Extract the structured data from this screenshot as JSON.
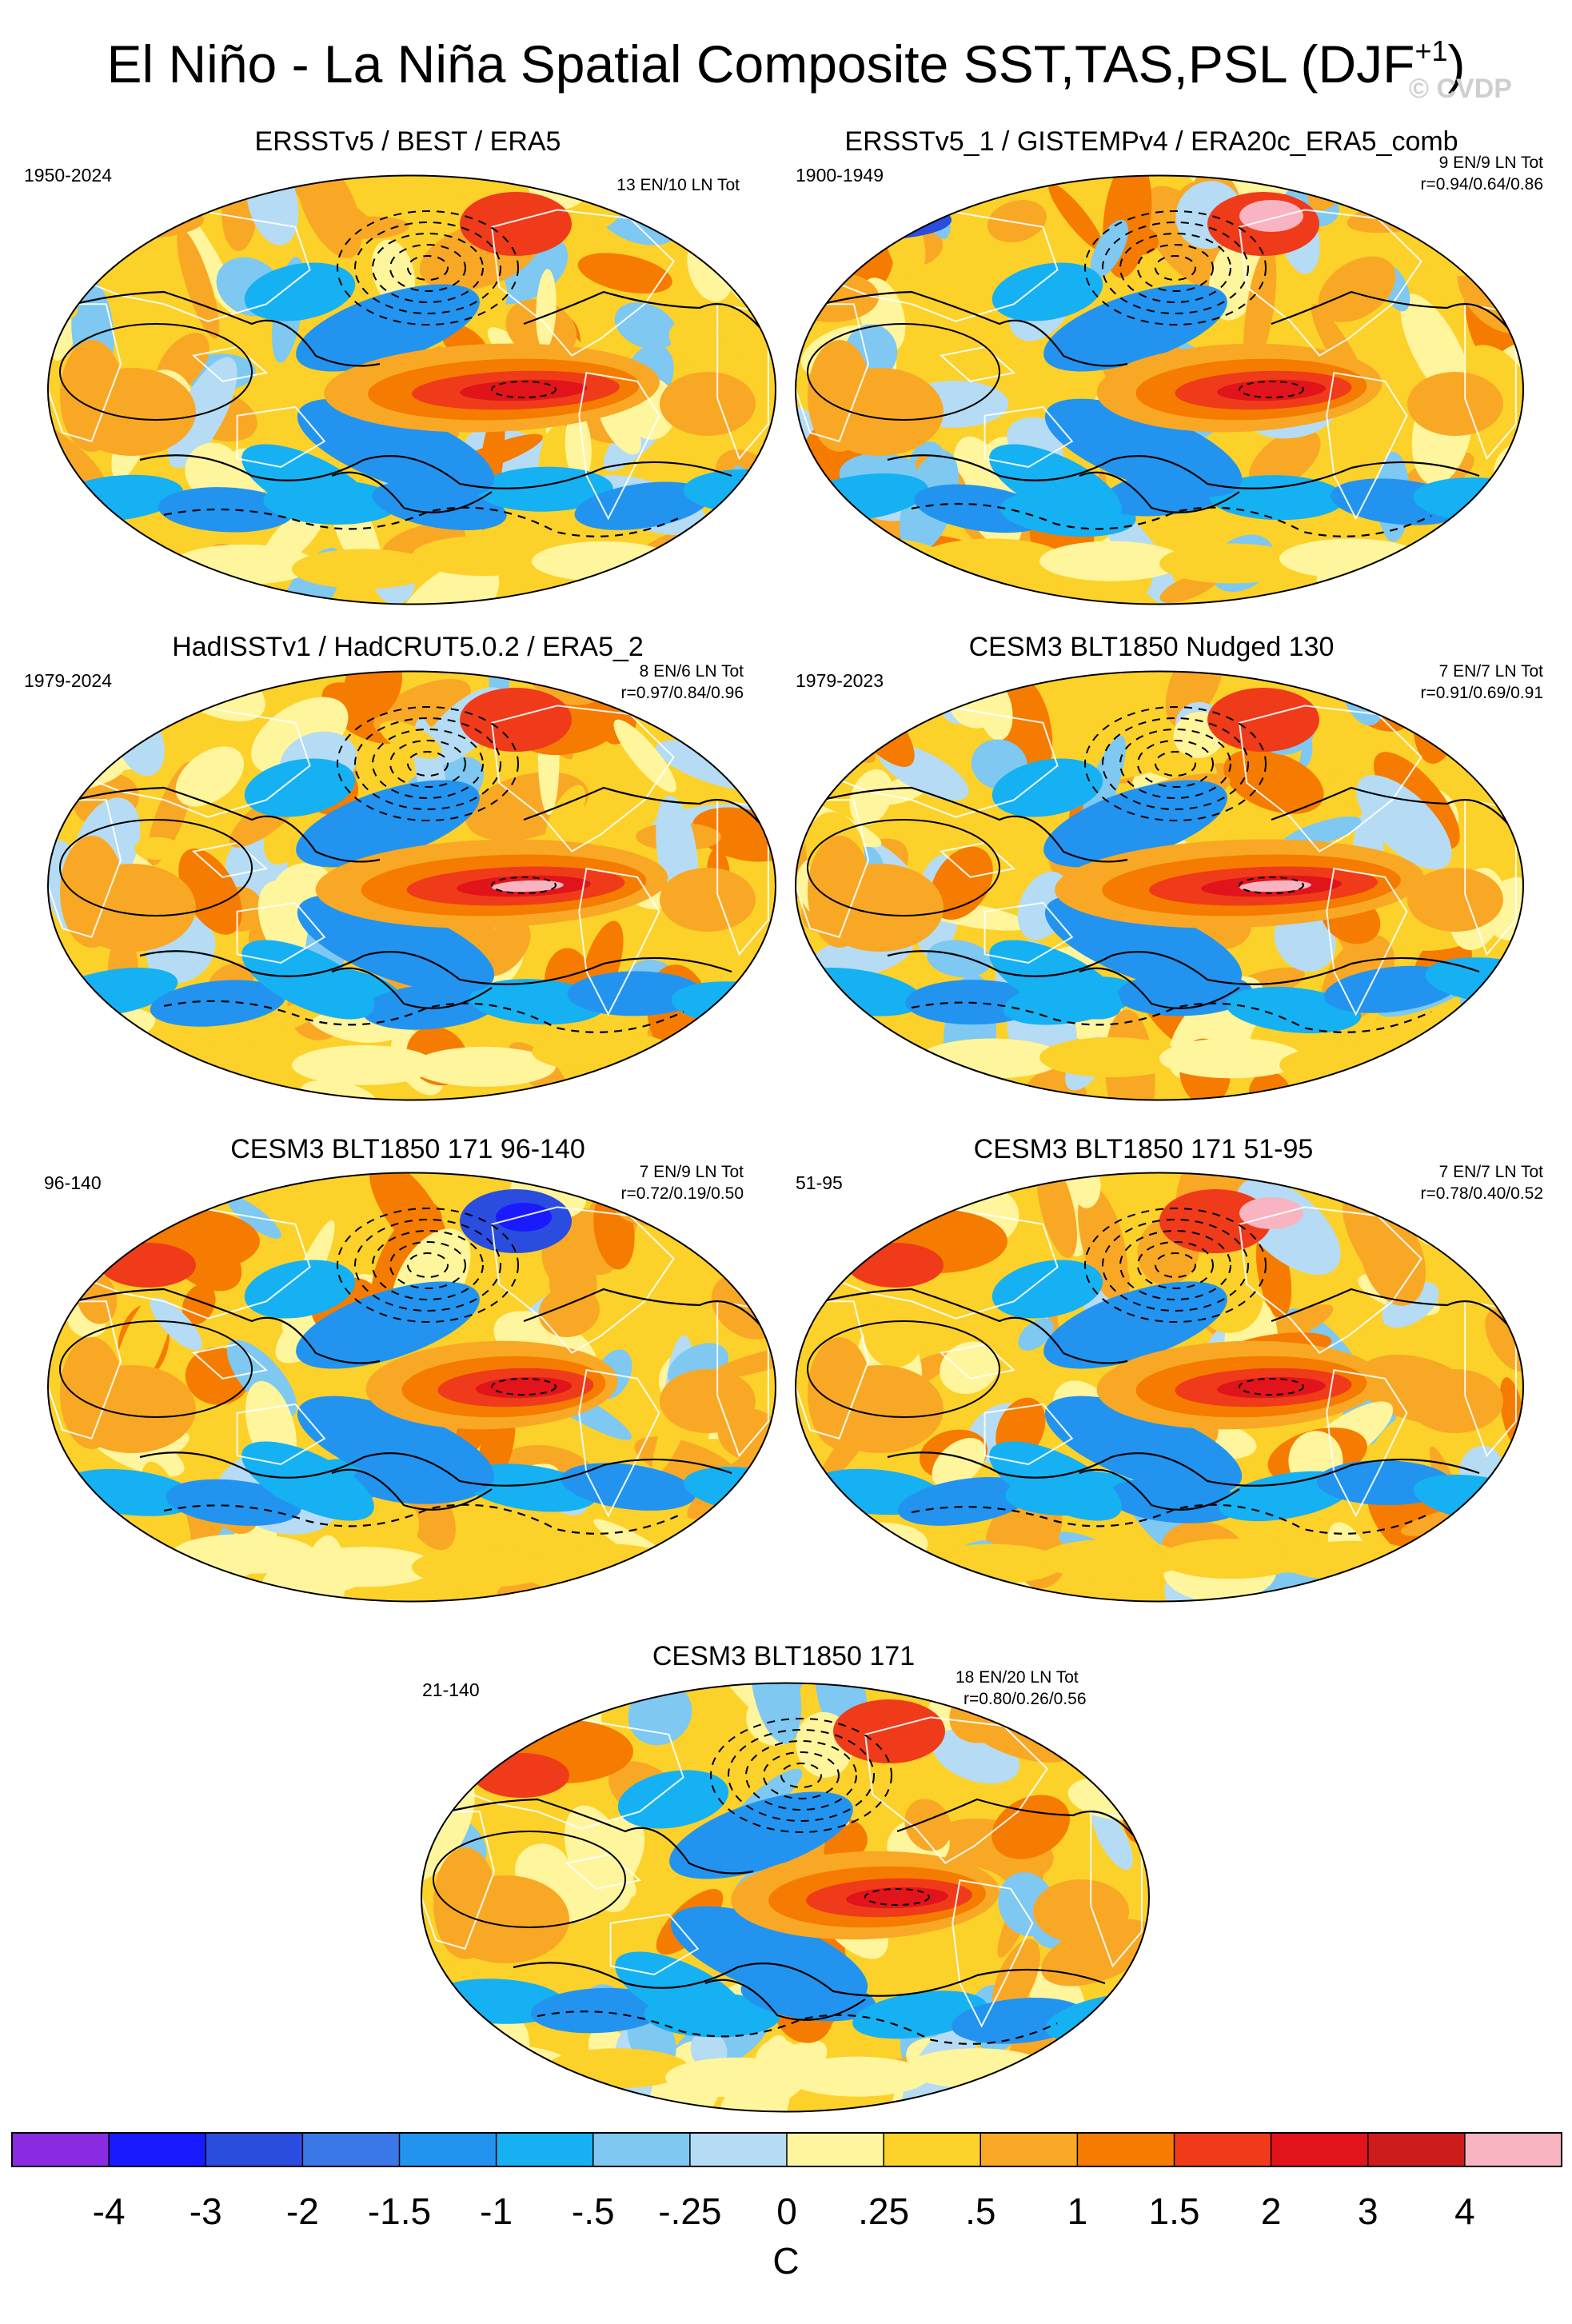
{
  "title": {
    "main": "El Niño - La Niña Spatial Composite SST,TAS,PSL (DJF",
    "superscript": "+1",
    "close": ")",
    "copyright": "© CVDP"
  },
  "panels": [
    {
      "title": "ERSSTv5 / BEST / ERA5",
      "period": "1950-2024",
      "counts": "13 EN/10 LN Tot",
      "corr": ""
    },
    {
      "title": "ERSSTv5_1 / GISTEMPv4 / ERA20c_ERA5_comb",
      "period": "1900-1949",
      "counts": "9 EN/9 LN Tot",
      "corr": "r=0.94/0.64/0.86"
    },
    {
      "title": "HadISSTv1 / HadCRUT5.0.2 / ERA5_2",
      "period": "1979-2024",
      "counts": "8 EN/6 LN Tot",
      "corr": "r=0.97/0.84/0.96"
    },
    {
      "title": "CESM3 BLT1850 Nudged 130",
      "period": "1979-2023",
      "counts": "7 EN/7 LN Tot",
      "corr": "r=0.91/0.69/0.91"
    },
    {
      "title": "CESM3 BLT1850 171 96-140",
      "period": "96-140",
      "counts": "7 EN/9 LN Tot",
      "corr": "r=0.72/0.19/0.50"
    },
    {
      "title": "CESM3 BLT1850 171 51-95",
      "period": "51-95",
      "counts": "7 EN/7 LN Tot",
      "corr": "r=0.78/0.40/0.52"
    },
    {
      "title": "CESM3 BLT1850 171",
      "period": "21-140",
      "counts": "18 EN/20 LN Tot",
      "corr": "r=0.80/0.26/0.56"
    }
  ],
  "chart_data": {
    "type": "heatmap",
    "title": "El Niño - La Niña Spatial Composite SST,TAS,PSL (DJF+1)",
    "colorbar": {
      "unit": "C",
      "levels": [
        "-4",
        "-3",
        "-2",
        "-1.5",
        "-1",
        "-.5",
        "-.25",
        "0",
        ".25",
        ".5",
        "1",
        "1.5",
        "2",
        "3",
        "4"
      ],
      "colors": [
        "#8a2be2",
        "#1a1aff",
        "#2a4de0",
        "#3b78e7",
        "#2294f0",
        "#16b1f2",
        "#7ec8f2",
        "#b5dcf4",
        "#fff59d",
        "#fcd12a",
        "#f9a825",
        "#f57c00",
        "#ef3b1a",
        "#e0141a",
        "#cc1c1c",
        "#f8b4c0"
      ]
    },
    "contours": "sea level pressure anomalies (solid positive, dashed negative)"
  }
}
